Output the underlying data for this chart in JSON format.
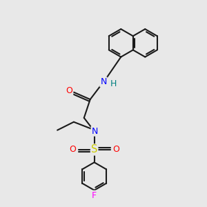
{
  "background_color": "#e8e8e8",
  "bond_color": "#1a1a1a",
  "atom_colors": {
    "N": "#0000ff",
    "O": "#ff0000",
    "S": "#cccc00",
    "F": "#ff00ff",
    "H": "#008080",
    "C": "#1a1a1a"
  },
  "bond_lw": 1.5,
  "ring_r": 0.68
}
